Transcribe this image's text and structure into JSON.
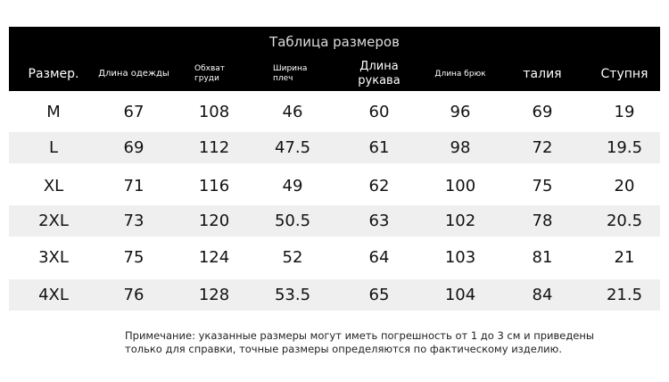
{
  "title": "Таблица размеров",
  "table": {
    "header": [
      "Размер.",
      "Длина одежды",
      "Обхват груди",
      "Ширина плеч",
      "Длина рукава",
      "Длина брюк",
      "талия",
      "Ступня"
    ],
    "rows": [
      [
        "M",
        67,
        108,
        46,
        60,
        96,
        69,
        19
      ],
      [
        "L",
        69,
        112,
        47.5,
        61,
        98,
        72,
        19.5
      ],
      [
        "XL",
        71,
        116,
        49,
        62,
        100,
        75,
        20
      ],
      [
        "2XL",
        73,
        120,
        50.5,
        63,
        102,
        78,
        20.5
      ],
      [
        "3XL",
        75,
        124,
        52,
        64,
        103,
        81,
        21
      ],
      [
        "4XL",
        76,
        128,
        53.5,
        65,
        104,
        84,
        21.5
      ]
    ]
  },
  "note": {
    "lines": [
      "Примечание: указанные размеры могут иметь погрешность от 1 до 3 см и приведены",
      "только для справки, точные размеры определяются по фактическому изделию."
    ]
  }
}
